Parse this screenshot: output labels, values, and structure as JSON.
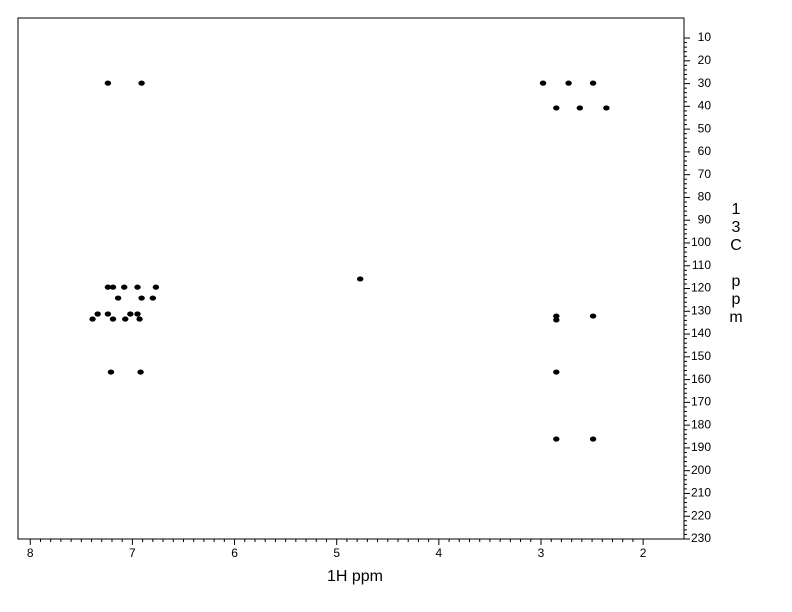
{
  "chart_data": {
    "type": "scatter",
    "x_label": "1H ppm",
    "y_label": "13C ppm",
    "xlim": [
      8.12,
      1.6
    ],
    "xticks": [
      8,
      7,
      6,
      5,
      4,
      3,
      2
    ],
    "ylim": [
      1.2,
      230
    ],
    "yticks": [
      10,
      20,
      30,
      40,
      50,
      60,
      70,
      80,
      90,
      100,
      110,
      120,
      130,
      140,
      150,
      160,
      170,
      180,
      190,
      200,
      210,
      220,
      230
    ],
    "color": "#000000",
    "x": [
      7.24,
      6.91,
      2.98,
      2.73,
      2.49,
      2.85,
      2.62,
      2.36,
      4.77,
      7.24,
      7.19,
      7.08,
      6.95,
      6.77,
      7.14,
      6.91,
      6.8,
      7.34,
      7.24,
      7.02,
      6.95,
      7.39,
      7.19,
      7.07,
      6.93,
      2.85,
      2.85,
      2.49,
      7.21,
      6.92,
      2.85,
      2.85,
      2.49
    ],
    "y": [
      29.8,
      29.8,
      29.8,
      29.8,
      29.8,
      40.7,
      40.7,
      40.7,
      115.8,
      119.4,
      119.4,
      119.4,
      119.4,
      119.4,
      124.2,
      124.2,
      124.2,
      131.2,
      131.2,
      131.2,
      131.2,
      133.4,
      133.4,
      133.4,
      133.4,
      132.1,
      133.8,
      132.1,
      156.7,
      156.7,
      156.7,
      186.1,
      186.1
    ]
  }
}
